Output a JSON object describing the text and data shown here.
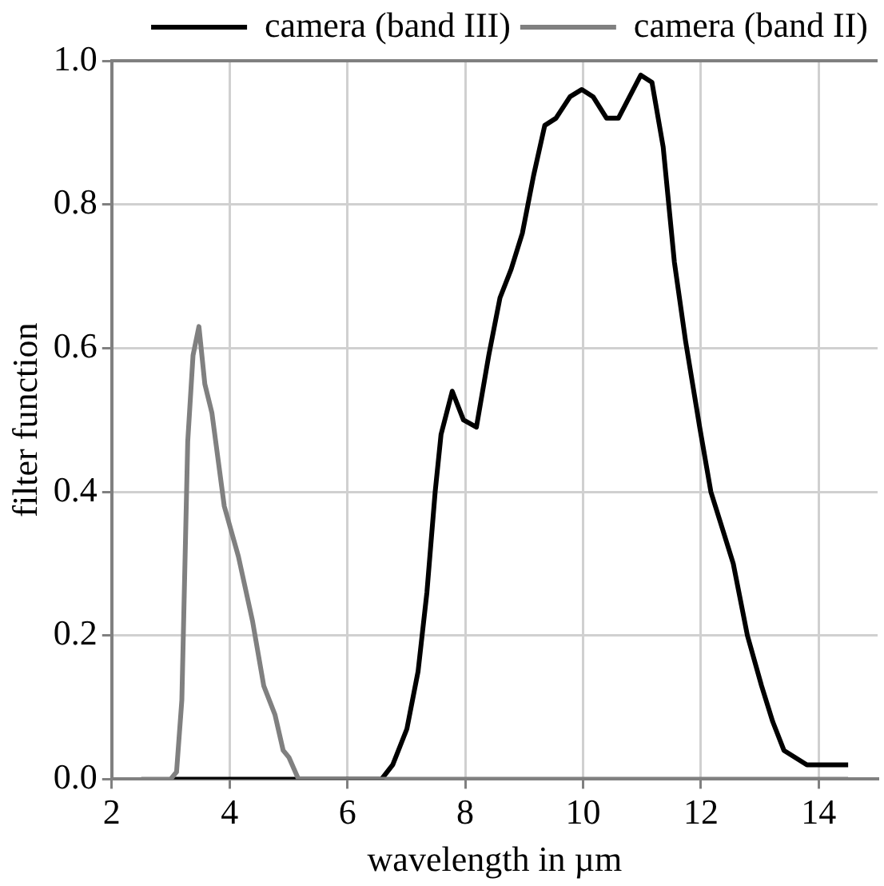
{
  "chart_data": {
    "type": "line",
    "xlabel": "wavelength in µm",
    "ylabel": "filter function",
    "xlim": [
      2,
      15
    ],
    "xticks": [
      2,
      4,
      6,
      8,
      10,
      12,
      14
    ],
    "ylim": [
      0,
      1
    ],
    "yticks": [
      {
        "value": 0,
        "label": "0.0"
      },
      {
        "value": 0.2,
        "label": "0.2"
      },
      {
        "value": 0.4,
        "label": "0.4"
      },
      {
        "value": 0.6,
        "label": "0.6"
      },
      {
        "value": 0.8,
        "label": "0.8"
      },
      {
        "value": 1,
        "label": "1.0"
      }
    ],
    "grid": true,
    "legend": "top right",
    "marker": "none",
    "line_style": "solid",
    "series": [
      {
        "name": "camera (band III)",
        "color": "#000000",
        "x": [
          3.05,
          6.58,
          6.77,
          7.01,
          7.2,
          7.35,
          7.49,
          7.59,
          7.78,
          7.97,
          8.19,
          8.4,
          8.59,
          8.78,
          8.97,
          9.16,
          9.35,
          9.54,
          9.78,
          9.98,
          10.17,
          10.4,
          10.6,
          10.79,
          10.98,
          11.17,
          11.36,
          11.55,
          11.74,
          11.98,
          12.17,
          12.36,
          12.55,
          12.79,
          13.03,
          13.22,
          13.41,
          13.8,
          14.5
        ],
        "values": [
          0,
          0,
          0.02,
          0.07,
          0.15,
          0.26,
          0.4,
          0.48,
          0.54,
          0.5,
          0.49,
          0.59,
          0.67,
          0.71,
          0.76,
          0.84,
          0.91,
          0.92,
          0.95,
          0.96,
          0.95,
          0.92,
          0.92,
          0.95,
          0.98,
          0.97,
          0.88,
          0.72,
          0.61,
          0.49,
          0.4,
          0.35,
          0.3,
          0.2,
          0.13,
          0.08,
          0.04,
          0.02,
          0.02
        ]
      },
      {
        "name": "camera (band II)",
        "color": "#808080",
        "x": [
          2.5,
          3.0,
          3.1,
          3.19,
          3.29,
          3.38,
          3.48,
          3.58,
          3.7,
          3.91,
          4.15,
          4.39,
          4.58,
          4.77,
          4.91,
          5.01,
          5.17,
          14.5
        ],
        "values": [
          0,
          0,
          0.01,
          0.11,
          0.47,
          0.59,
          0.63,
          0.55,
          0.51,
          0.38,
          0.31,
          0.22,
          0.13,
          0.09,
          0.04,
          0.03,
          0,
          0
        ]
      }
    ]
  }
}
